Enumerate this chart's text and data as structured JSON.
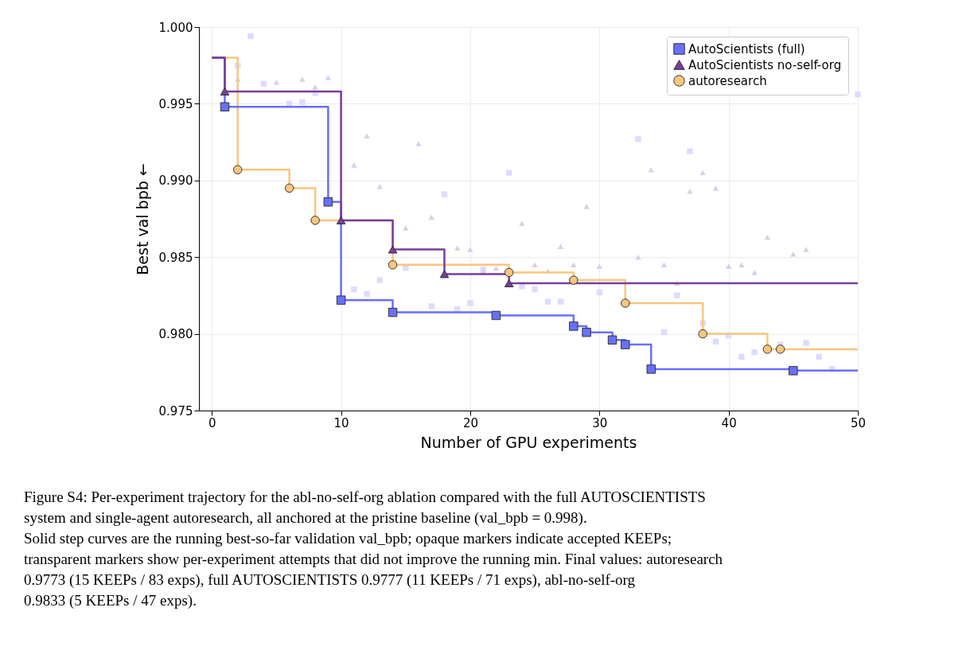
{
  "chart_data": {
    "type": "step",
    "xlabel": "Number of GPU experiments",
    "ylabel": "Best val bpb ←",
    "xlim": [
      -1,
      50
    ],
    "xticks": [
      0,
      10,
      20,
      30,
      40,
      50
    ],
    "ylim": [
      0.975,
      1.0
    ],
    "yticks": [
      {
        "value": 0.975,
        "label": "0.975"
      },
      {
        "value": 0.98,
        "label": "0.980"
      },
      {
        "value": 0.985,
        "label": "0.985"
      },
      {
        "value": 0.99,
        "label": "0.990"
      },
      {
        "value": 0.995,
        "label": "0.995"
      },
      {
        "value": 1.0,
        "label": "1.000"
      }
    ],
    "grid": true,
    "legend": "top right",
    "series": [
      {
        "type": "scatter",
        "marker": "square",
        "color": "#dcdcff",
        "x": [
          2,
          3,
          4,
          6,
          7,
          8,
          11,
          12,
          13,
          15,
          17,
          18,
          19,
          20,
          21,
          23,
          24,
          25,
          26,
          27,
          30,
          33,
          35,
          36,
          37,
          38,
          39,
          40,
          41,
          42,
          44,
          46,
          47,
          48,
          50
        ],
        "values": [
          0.9975,
          0.9994,
          0.9963,
          0.995,
          0.9951,
          0.9957,
          0.9829,
          0.9826,
          0.9835,
          0.9843,
          0.9818,
          0.9891,
          0.9816,
          0.982,
          0.9842,
          0.9905,
          0.9831,
          0.9829,
          0.9821,
          0.9821,
          0.9827,
          0.9927,
          0.9801,
          0.9825,
          0.9919,
          0.9807,
          0.9795,
          0.9799,
          0.9785,
          0.9788,
          0.9793,
          0.9794,
          0.9785,
          0.9777,
          0.9956
        ]
      },
      {
        "type": "scatter",
        "marker": "triangle",
        "color": "#dccde6",
        "x": [
          2,
          5,
          7,
          8,
          9,
          11,
          12,
          13,
          15,
          16,
          17,
          19,
          20,
          21,
          22,
          24,
          25,
          26,
          27,
          28,
          29,
          30,
          33,
          34,
          35,
          36,
          37,
          38,
          39,
          40,
          41,
          42,
          43,
          45,
          46
        ],
        "values": [
          0.9966,
          0.9964,
          0.9966,
          0.9961,
          0.9967,
          0.991,
          0.9929,
          0.9896,
          0.9869,
          0.9924,
          0.9876,
          0.9856,
          0.9855,
          0.9841,
          0.9843,
          0.9872,
          0.9845,
          0.9841,
          0.9857,
          0.9845,
          0.9883,
          0.9844,
          0.985,
          0.9907,
          0.9845,
          0.9833,
          0.9893,
          0.9905,
          0.9895,
          0.9844,
          0.9845,
          0.984,
          0.9863,
          0.9852,
          0.9855
        ]
      },
      {
        "type": "step",
        "marker": "none",
        "line_style": "solid",
        "color": "#f8c67e",
        "x": [
          0,
          2,
          6,
          8,
          14,
          23,
          28,
          32,
          38,
          43,
          44,
          50
        ],
        "values": [
          0.998,
          0.9907,
          0.9895,
          0.9874,
          0.9845,
          0.984,
          0.9835,
          0.982,
          0.98,
          0.979,
          0.979,
          0.979
        ]
      },
      {
        "type": "step",
        "marker": "none",
        "line_style": "solid",
        "color": "#6870ff",
        "x": [
          0,
          1,
          9,
          10,
          14,
          22,
          28,
          29,
          31,
          32,
          34,
          45,
          50
        ],
        "values": [
          0.998,
          0.9948,
          0.9886,
          0.9822,
          0.9814,
          0.9812,
          0.9805,
          0.9801,
          0.9796,
          0.9793,
          0.9777,
          0.9776,
          0.9776
        ]
      },
      {
        "type": "step",
        "marker": "none",
        "line_style": "solid",
        "color": "#7b3c9e",
        "x": [
          0,
          1,
          10,
          14,
          18,
          23,
          50
        ],
        "values": [
          0.998,
          0.9958,
          0.9874,
          0.9855,
          0.9839,
          0.9833,
          0.9833
        ]
      },
      {
        "type": "scatter",
        "name": "AutoScientists (full)",
        "marker": "square",
        "color": "#6870ff",
        "x": [
          1,
          9,
          10,
          14,
          22,
          28,
          29,
          31,
          32,
          34,
          45
        ],
        "values": [
          0.9948,
          0.9886,
          0.9822,
          0.9814,
          0.9812,
          0.9805,
          0.9801,
          0.9796,
          0.9793,
          0.9777,
          0.9776
        ]
      },
      {
        "type": "scatter",
        "name": "AutoScientists no-self-org",
        "marker": "triangle",
        "color": "#7b3c9e",
        "x": [
          1,
          10,
          14,
          18,
          23
        ],
        "values": [
          0.9958,
          0.9874,
          0.9855,
          0.9839,
          0.9833
        ]
      },
      {
        "type": "scatter",
        "name": "autoresearch",
        "marker": "circle",
        "color": "#f8c67e",
        "x": [
          2,
          6,
          8,
          14,
          23,
          28,
          32,
          38,
          43,
          44
        ],
        "values": [
          0.9907,
          0.9895,
          0.9874,
          0.9845,
          0.984,
          0.9835,
          0.982,
          0.98,
          0.979,
          0.979
        ]
      }
    ],
    "annotations": [
      "Figure S4: Per-experiment trajectory for the abl-no-self-org ablation compared with the full AUTOSCIENTISTS",
      "system and single-agent autoresearch, all anchored at the pristine baseline (val_bpb = 0.998).",
      "Solid step curves are the running best-so-far validation val_bpb; opaque markers indicate accepted KEEPs;",
      "transparent markers show per-experiment attempts that did not improve the running min. Final values: autoresearch",
      "0.9773 (15 KEEPs / 83 exps), full AUTOSCIENTISTS 0.9777 (11 KEEPs / 71 exps), abl-no-self-org",
      "0.9833 (5 KEEPs / 47 exps)."
    ]
  }
}
